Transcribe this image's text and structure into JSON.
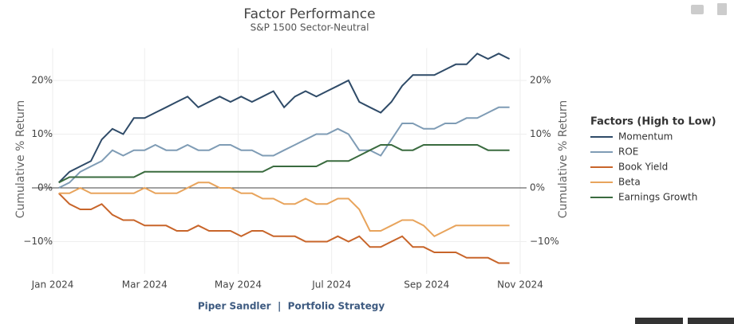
{
  "chart_data": {
    "type": "line",
    "title": "Factor Performance",
    "subtitle": "S&P 1500 Sector-Neutral",
    "y_label": "Cumulative % Return",
    "y2_label": "Cumulative % Return",
    "legend_title": "Factors (High to Low)",
    "legend_position": "right",
    "footer": "Piper Sandler  |  Portfolio Strategy",
    "grid": true,
    "x": [
      "2024-01-05",
      "2024-01-12",
      "2024-01-19",
      "2024-01-26",
      "2024-02-02",
      "2024-02-09",
      "2024-02-16",
      "2024-02-23",
      "2024-03-01",
      "2024-03-08",
      "2024-03-15",
      "2024-03-22",
      "2024-03-29",
      "2024-04-05",
      "2024-04-12",
      "2024-04-19",
      "2024-04-26",
      "2024-05-03",
      "2024-05-10",
      "2024-05-17",
      "2024-05-24",
      "2024-05-31",
      "2024-06-07",
      "2024-06-14",
      "2024-06-21",
      "2024-06-28",
      "2024-07-05",
      "2024-07-12",
      "2024-07-19",
      "2024-07-26",
      "2024-08-02",
      "2024-08-09",
      "2024-08-16",
      "2024-08-23",
      "2024-08-30",
      "2024-09-06",
      "2024-09-13",
      "2024-09-20",
      "2024-09-27",
      "2024-10-04",
      "2024-10-11",
      "2024-10-18",
      "2024-10-25"
    ],
    "xlim": [
      "2024-01-01",
      "2024-11-01"
    ],
    "xticks": [
      {
        "value": "2024-01-01",
        "label": "Jan 2024"
      },
      {
        "value": "2024-03-01",
        "label": "Mar 2024"
      },
      {
        "value": "2024-05-01",
        "label": "May 2024"
      },
      {
        "value": "2024-07-01",
        "label": "Jul 2024"
      },
      {
        "value": "2024-09-01",
        "label": "Sep 2024"
      },
      {
        "value": "2024-11-01",
        "label": "Nov 2024"
      }
    ],
    "ylim": [
      -16,
      26
    ],
    "yticks": [
      {
        "value": -10,
        "label": "−10%"
      },
      {
        "value": 0,
        "label": "0%"
      },
      {
        "value": 10,
        "label": "10%"
      },
      {
        "value": 20,
        "label": "20%"
      }
    ],
    "y2lim": [
      -16,
      26
    ],
    "y2ticks": [
      {
        "value": -10,
        "label": "−10%"
      },
      {
        "value": 0,
        "label": "0%"
      },
      {
        "value": 10,
        "label": "10%"
      },
      {
        "value": 20,
        "label": "20%"
      }
    ],
    "series": [
      {
        "name": "Momentum",
        "color": "#2f4b68",
        "values": [
          1,
          3,
          4,
          5,
          9,
          11,
          10,
          13,
          13,
          14,
          15,
          16,
          17,
          15,
          16,
          17,
          16,
          17,
          16,
          17,
          18,
          15,
          17,
          18,
          17,
          18,
          19,
          20,
          16,
          15,
          14,
          16,
          19,
          21,
          21,
          21,
          22,
          23,
          23,
          25,
          24,
          25,
          24
        ]
      },
      {
        "name": "ROE",
        "color": "#7f9cb5",
        "values": [
          0,
          1,
          3,
          4,
          5,
          7,
          6,
          7,
          7,
          8,
          7,
          7,
          8,
          7,
          7,
          8,
          8,
          7,
          7,
          6,
          6,
          7,
          8,
          9,
          10,
          10,
          11,
          10,
          7,
          7,
          6,
          9,
          12,
          12,
          11,
          11,
          12,
          12,
          13,
          13,
          14,
          15,
          15
        ]
      },
      {
        "name": "Book Yield",
        "color": "#c8652a",
        "values": [
          -1,
          -3,
          -4,
          -4,
          -3,
          -5,
          -6,
          -6,
          -7,
          -7,
          -7,
          -8,
          -8,
          -7,
          -8,
          -8,
          -8,
          -9,
          -8,
          -8,
          -9,
          -9,
          -9,
          -10,
          -10,
          -10,
          -9,
          -10,
          -9,
          -11,
          -11,
          -10,
          -9,
          -11,
          -11,
          -12,
          -12,
          -12,
          -13,
          -13,
          -13,
          -14,
          -14
        ]
      },
      {
        "name": "Beta",
        "color": "#e8a45c",
        "values": [
          -1,
          -1,
          0,
          -1,
          -1,
          -1,
          -1,
          -1,
          0,
          -1,
          -1,
          -1,
          0,
          1,
          1,
          0,
          0,
          -1,
          -1,
          -2,
          -2,
          -3,
          -3,
          -2,
          -3,
          -3,
          -2,
          -2,
          -4,
          -8,
          -8,
          -7,
          -6,
          -6,
          -7,
          -9,
          -8,
          -7,
          -7,
          -7,
          -7,
          -7,
          -7
        ]
      },
      {
        "name": "Earnings Growth",
        "color": "#3a6b3f",
        "values": [
          1,
          2,
          2,
          2,
          2,
          2,
          2,
          2,
          3,
          3,
          3,
          3,
          3,
          3,
          3,
          3,
          3,
          3,
          3,
          3,
          4,
          4,
          4,
          4,
          4,
          5,
          5,
          5,
          6,
          7,
          8,
          8,
          7,
          7,
          8,
          8,
          8,
          8,
          8,
          8,
          7,
          7,
          7
        ]
      }
    ]
  }
}
